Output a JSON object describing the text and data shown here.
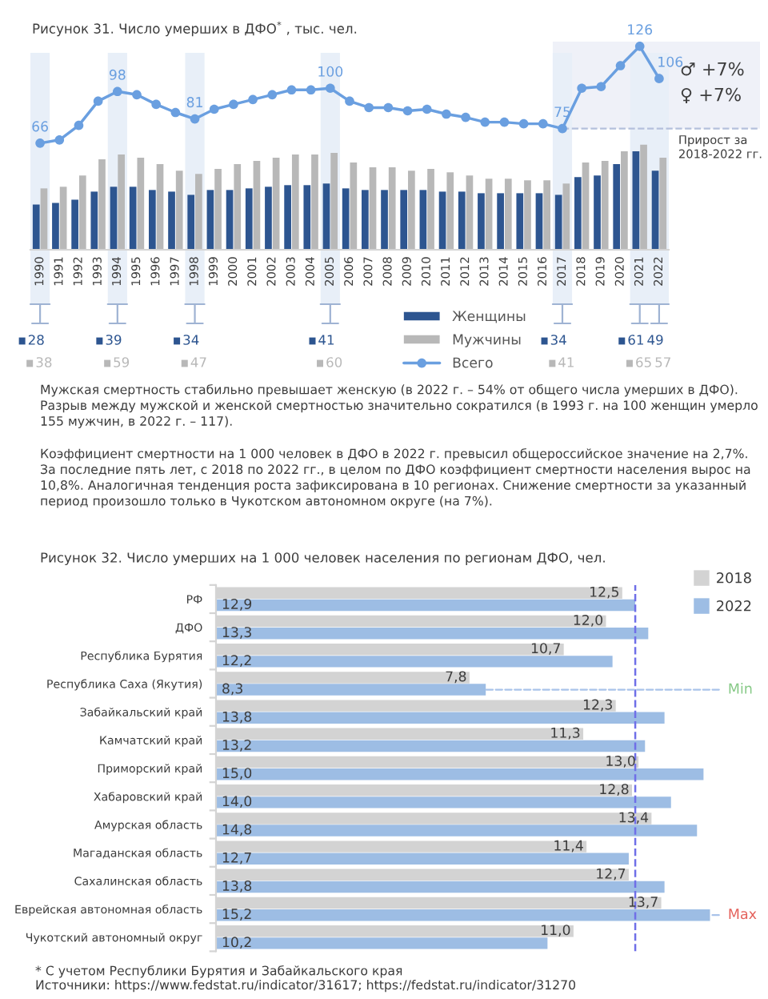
{
  "chart_data": [
    {
      "type": "bar",
      "title": "Рисунок 31. Число умерших в ДФО$^{*}$ , тыс. чел.",
      "categories": [
        "1990",
        "1991",
        "1992",
        "1993",
        "1994",
        "1995",
        "1996",
        "1997",
        "1998",
        "1999",
        "2000",
        "2001",
        "2002",
        "2003",
        "2004",
        "2005",
        "2006",
        "2007",
        "2008",
        "2009",
        "2010",
        "2011",
        "2012",
        "2013",
        "2014",
        "2015",
        "2016",
        "2017",
        "2018",
        "2019",
        "2020",
        "2021",
        "2022"
      ],
      "series": [
        {
          "name": "Женщины",
          "type": "bar",
          "color": "#2d5590",
          "values": [
            28,
            29,
            31,
            36,
            39,
            39,
            37,
            36,
            34,
            37,
            37,
            38,
            39,
            40,
            40,
            41,
            38,
            37,
            37,
            37,
            37,
            36,
            36,
            35,
            35,
            35,
            35,
            34,
            45,
            46,
            53,
            61,
            49
          ],
          "value_labels": [
            "28",
            null,
            null,
            null,
            "39",
            null,
            null,
            null,
            "34",
            null,
            null,
            null,
            null,
            null,
            null,
            "41",
            null,
            null,
            null,
            null,
            null,
            null,
            null,
            null,
            null,
            null,
            null,
            "34",
            null,
            null,
            null,
            "61",
            "49"
          ]
        },
        {
          "name": "Мужчины",
          "type": "bar",
          "color": "#b8b8b8",
          "values": [
            38,
            39,
            46,
            56,
            59,
            57,
            53,
            49,
            47,
            50,
            53,
            55,
            57,
            59,
            59,
            60,
            54,
            51,
            51,
            49,
            50,
            48,
            46,
            44,
            44,
            43,
            43,
            41,
            54,
            55,
            61,
            65,
            57
          ],
          "value_labels": [
            "38",
            null,
            null,
            null,
            "59",
            null,
            null,
            null,
            "47",
            null,
            null,
            null,
            null,
            null,
            null,
            "60",
            null,
            null,
            null,
            null,
            null,
            null,
            null,
            null,
            null,
            null,
            null,
            "41",
            null,
            null,
            null,
            "65",
            "57"
          ]
        },
        {
          "name": "Всего",
          "type": "line",
          "color": "#6a9fe0",
          "marker": "circle",
          "values": [
            66,
            68,
            77,
            92,
            98,
            96,
            90,
            85,
            81,
            87,
            90,
            93,
            96,
            99,
            99,
            100,
            92,
            88,
            88,
            86,
            87,
            84,
            82,
            79,
            79,
            78,
            78,
            75,
            100,
            101,
            114,
            126,
            106
          ],
          "value_labels": [
            "66",
            null,
            null,
            null,
            "98",
            null,
            null,
            null,
            "81",
            null,
            null,
            null,
            null,
            null,
            null,
            "100",
            null,
            null,
            null,
            null,
            null,
            null,
            null,
            null,
            null,
            null,
            null,
            "75",
            null,
            null,
            null,
            "126",
            "106"
          ]
        }
      ],
      "tick_labels": "x",
      "legend": "bottom",
      "bands": [
        {
          "axis": "x",
          "from": "2017",
          "to": "2022",
          "label": "Прирост за 2018-2022 гг.",
          "color": "#eff1f8"
        }
      ],
      "annotations": [
        "♂ +7%",
        "♀ +7%",
        "Мужская смертность стабильно превышает женскую (в 2022 г. – 54% от общего числа умерших в ДФО). Разрыв между мужской и женской смертностью значительно сократился (в 1993 г. на 100 женщин умерло 155 мужчин, в 2022 г. – 117).",
        "Коэффициент смертности на 1 000 человек в ДФО в 2022 г. превысил общероссийское значение на 2,7%. За последние пять лет, с 2018 по 2022 гг., в целом по ДФО коэффициент смертности населения вырос на 10,8%. Аналогичная тенденция роста зафиксирована в 10 регионах. Снижение смертности за указанный период произошло только в Чукотском автономном округе (на 7%)."
      ]
    },
    {
      "type": "bar",
      "orientation": "horizontal",
      "title": "Рисунок 32. Число умерших на 1 000 человек населения по регионам ДФО, чел.",
      "categories": [
        "РФ",
        "ДФО",
        "Республика Бурятия",
        "Республика Саха (Якутия)",
        "Забайкальский край",
        "Камчатский край",
        "Приморский край",
        "Хабаровский край",
        "Амурская область",
        "Магаданская область",
        "Сахалинская область",
        "Еврейская автономная область",
        "Чукотский автономный округ"
      ],
      "series": [
        {
          "name": "2018",
          "color": "#d3d3d3",
          "values": [
            12.5,
            12.0,
            10.7,
            7.8,
            12.3,
            11.3,
            13.0,
            12.8,
            13.4,
            11.4,
            12.7,
            13.7,
            11.0
          ],
          "value_labels": [
            "12,5",
            "12,0",
            "10,7",
            "7,8",
            "12,3",
            "11,3",
            "13,0",
            "12,8",
            "13,4",
            "11,4",
            "12,7",
            "13,7",
            "11,0"
          ]
        },
        {
          "name": "2022",
          "color": "#9dbde4",
          "values": [
            12.9,
            13.3,
            12.2,
            8.3,
            13.8,
            13.2,
            15.0,
            14.0,
            14.8,
            12.7,
            13.8,
            15.2,
            10.2
          ],
          "value_labels": [
            "12,9",
            "13,3",
            "12,2",
            "8,3",
            "13,8",
            "13,2",
            "15,0",
            "14,0",
            "14,8",
            "12,7",
            "13,8",
            "15,2",
            "10,2"
          ]
        }
      ],
      "tick_labels": "y",
      "legend": "top right",
      "ref_lines": [
        {
          "axis": "x",
          "value": 12.9,
          "color": "#6f6fe8",
          "line_style": "dashed"
        }
      ],
      "annotations": [
        {
          "text": "Min",
          "x": 8.3,
          "y": "Республика Саха (Якутия)"
        },
        {
          "text": "Max",
          "x": 15.2,
          "y": "Еврейская автономная область"
        },
        "* С учетом Республики Бурятия и Забайкальского края",
        "Источники: https://www.fedstat.ru/indicator/31617; https://fedstat.ru/indicator/31270"
      ]
    }
  ]
}
